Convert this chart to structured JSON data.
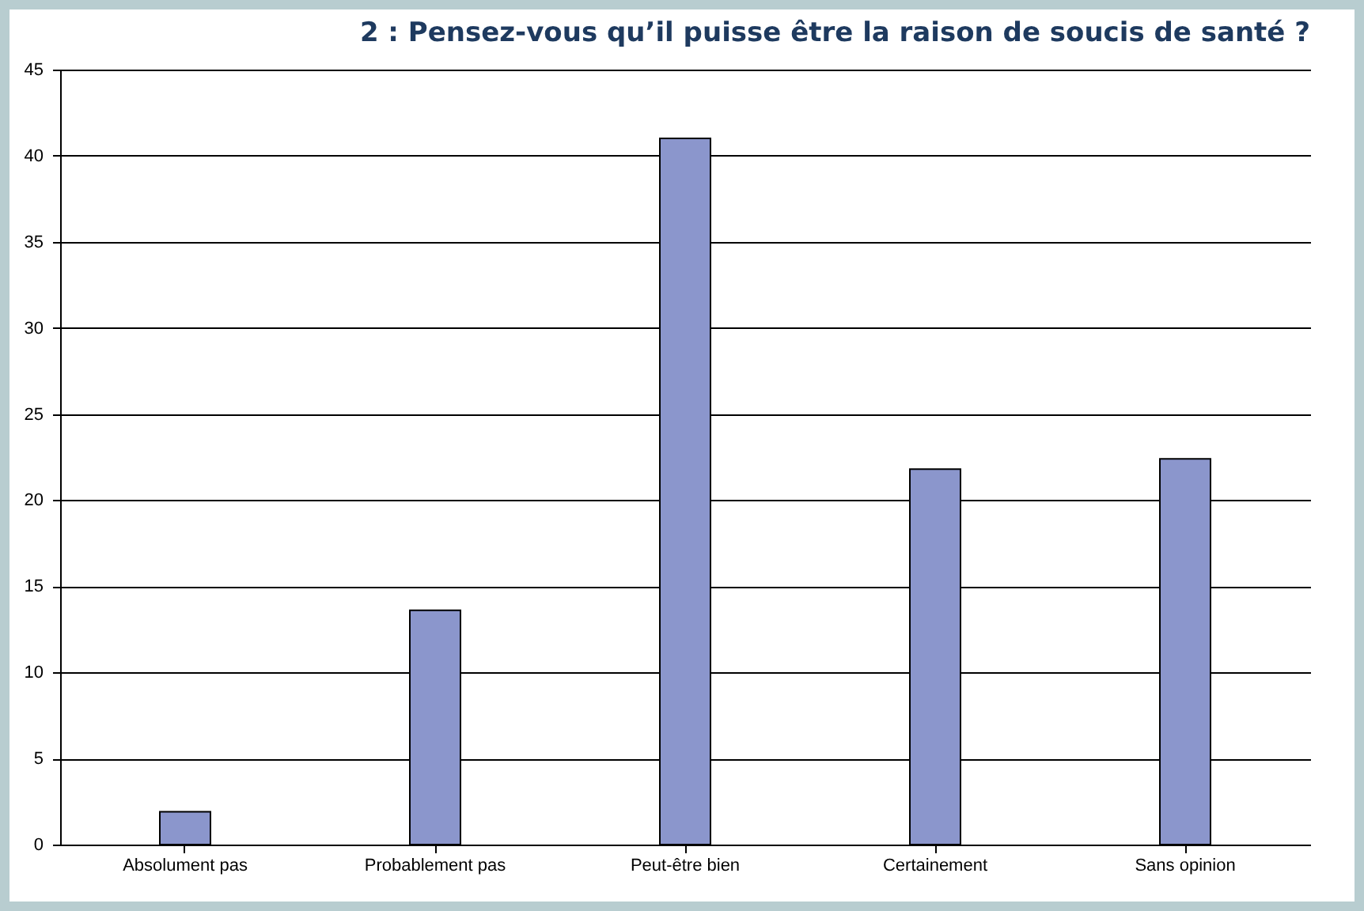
{
  "chart_data": {
    "type": "bar",
    "title": "2 : Pensez-vous qu’il puisse être la raison de soucis de santé ?",
    "categories": [
      "Absolument pas",
      "Probablement pas",
      "Peut-être bien",
      "Certainement",
      "Sans opinion"
    ],
    "values": [
      1.9,
      13.6,
      41.0,
      21.8,
      22.4
    ],
    "color": "#8b96cc",
    "ylim": [
      0,
      45
    ],
    "yticks": [
      0,
      5,
      10,
      15,
      20,
      25,
      30,
      35,
      40,
      45
    ],
    "grid": "y",
    "legend": false
  }
}
